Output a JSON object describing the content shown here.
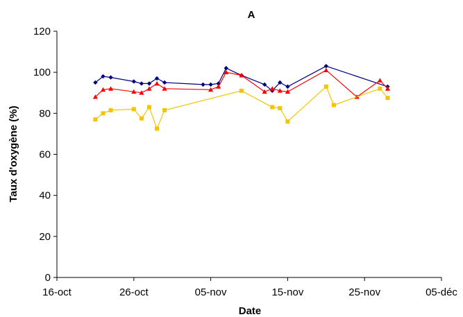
{
  "chart_data": {
    "type": "line",
    "title": "A",
    "xlabel": "Date",
    "ylabel": "Taux d'oxygène (%)",
    "x_ticks": [
      "16-oct",
      "26-oct",
      "05-nov",
      "15-nov",
      "25-nov",
      "05-déc"
    ],
    "xlim": [
      "2000-10-16",
      "2000-12-05"
    ],
    "ylim": [
      0,
      120
    ],
    "y_ticks": [
      0,
      20,
      40,
      60,
      80,
      100,
      120
    ],
    "grid": false,
    "legend": "none",
    "series": [
      {
        "color": "#000080",
        "marker": "diamond",
        "points": [
          [
            "2000-10-21",
            95
          ],
          [
            "2000-10-22",
            98
          ],
          [
            "2000-10-23",
            97.5
          ],
          [
            "2000-10-26",
            95.5
          ],
          [
            "2000-10-27",
            94.5
          ],
          [
            "2000-10-28",
            94.5
          ],
          [
            "2000-10-29",
            97
          ],
          [
            "2000-10-30",
            95
          ],
          [
            "2000-11-04",
            94
          ],
          [
            "2000-11-05",
            94
          ],
          [
            "2000-11-06",
            94.5
          ],
          [
            "2000-11-07",
            102
          ],
          [
            "2000-11-09",
            98.5
          ],
          [
            "2000-11-12",
            94
          ],
          [
            "2000-11-13",
            91
          ],
          [
            "2000-11-14",
            95
          ],
          [
            "2000-11-15",
            93
          ],
          [
            "2000-11-20",
            103
          ],
          [
            "2000-11-28",
            93
          ]
        ]
      },
      {
        "color": "#ff0000",
        "marker": "triangle",
        "points": [
          [
            "2000-10-21",
            88
          ],
          [
            "2000-10-22",
            91.5
          ],
          [
            "2000-10-23",
            92
          ],
          [
            "2000-10-26",
            90.5
          ],
          [
            "2000-10-27",
            90
          ],
          [
            "2000-10-28",
            92
          ],
          [
            "2000-10-29",
            94.5
          ],
          [
            "2000-10-30",
            92
          ],
          [
            "2000-11-05",
            91.5
          ],
          [
            "2000-11-06",
            93
          ],
          [
            "2000-11-07",
            100
          ],
          [
            "2000-11-09",
            98.5
          ],
          [
            "2000-11-12",
            90.5
          ],
          [
            "2000-11-13",
            92
          ],
          [
            "2000-11-14",
            91
          ],
          [
            "2000-11-15",
            90.5
          ],
          [
            "2000-11-20",
            101
          ],
          [
            "2000-11-24",
            88
          ],
          [
            "2000-11-27",
            96
          ],
          [
            "2000-11-28",
            92
          ]
        ]
      },
      {
        "color": "#f5c400",
        "marker": "square",
        "points": [
          [
            "2000-10-21",
            77
          ],
          [
            "2000-10-22",
            80
          ],
          [
            "2000-10-23",
            81.5
          ],
          [
            "2000-10-26",
            82
          ],
          [
            "2000-10-27",
            77.5
          ],
          [
            "2000-10-28",
            83
          ],
          [
            "2000-10-29",
            72.5
          ],
          [
            "2000-10-30",
            81.5
          ],
          [
            "2000-11-09",
            91
          ],
          [
            "2000-11-13",
            83
          ],
          [
            "2000-11-14",
            82.5
          ],
          [
            "2000-11-15",
            76
          ],
          [
            "2000-11-20",
            93
          ],
          [
            "2000-11-21",
            84
          ],
          [
            "2000-11-27",
            92
          ],
          [
            "2000-11-28",
            87.5
          ]
        ]
      }
    ]
  }
}
